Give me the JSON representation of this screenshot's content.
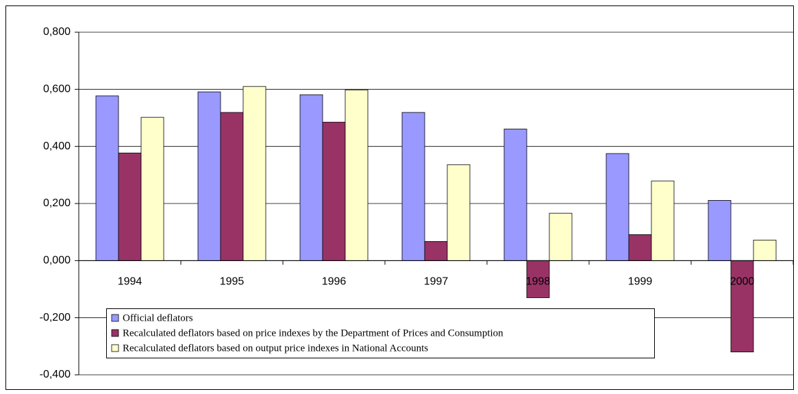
{
  "chart_data": {
    "type": "bar",
    "categories": [
      "1994",
      "1995",
      "1996",
      "1997",
      "1998",
      "1999",
      "2000"
    ],
    "series": [
      {
        "name": "Official deflators",
        "color": "#9999ff",
        "values": [
          0.577,
          0.591,
          0.581,
          0.519,
          0.461,
          0.375,
          0.211
        ]
      },
      {
        "name": "Recalculated deflators based on price indexes by the Department of Prices and Consumption",
        "color": "#993366",
        "values": [
          0.377,
          0.519,
          0.485,
          0.067,
          -0.13,
          0.091,
          -0.32
        ]
      },
      {
        "name": "Recalculated deflators based on output price indexes in National Accounts",
        "color": "#ffffcc",
        "values": [
          0.502,
          0.61,
          0.598,
          0.336,
          0.166,
          0.279,
          0.072
        ]
      }
    ],
    "ylim": [
      -0.4,
      0.8
    ],
    "yticks": [
      {
        "value": -0.4,
        "label": "-0,400"
      },
      {
        "value": -0.2,
        "label": "-0,200"
      },
      {
        "value": 0,
        "label": "0,000"
      },
      {
        "value": 0.2,
        "label": "0,200"
      },
      {
        "value": 0.4,
        "label": "0,400"
      },
      {
        "value": 0.6,
        "label": "0,600"
      },
      {
        "value": 0.8,
        "label": "0,800"
      }
    ],
    "grid": true,
    "legend": "lower left"
  }
}
